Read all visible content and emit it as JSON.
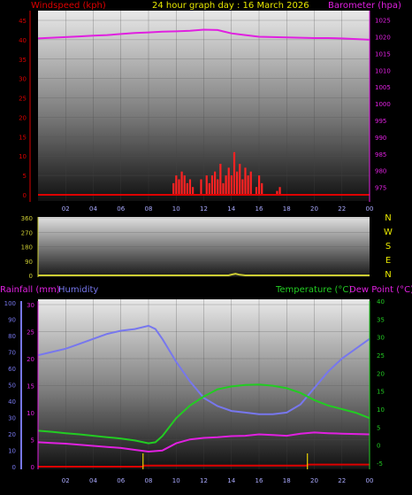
{
  "header": {
    "title": "24 hour graph day : 16 March 2026",
    "left_label": "Windspeed (kph)",
    "right_label": "Barometer (hpa)"
  },
  "colors": {
    "windspeed": "#dd0000",
    "windgust": "#ff2222",
    "barometer": "#e020e0",
    "direction": "#cccc33",
    "humidity": "#7777ee",
    "temperature": "#22cc22",
    "dewpoint": "#e020e0",
    "rain": "#e8d000",
    "title": "#e8e800",
    "frame": "#9999ff"
  },
  "direction_letters": [
    "N",
    "W",
    "S",
    "E",
    "N"
  ],
  "chart_data": [
    {
      "type": "line",
      "title": "24 hour graph day : 16 March 2026",
      "xlabel": "",
      "x_ticks": [
        "02",
        "04",
        "06",
        "08",
        "10",
        "12",
        "14",
        "16",
        "18",
        "20",
        "22",
        "00"
      ],
      "y_left_label": "Windspeed (kph)",
      "y_left_ticks": [
        "0",
        "5",
        "10",
        "15",
        "20",
        "25",
        "30",
        "35",
        "40",
        "45"
      ],
      "ylim_left": [
        0,
        45
      ],
      "y_right_label": "Barometer (hpa)",
      "y_right_ticks": [
        "975",
        "980",
        "985",
        "990",
        "995",
        "1000",
        "1005",
        "1010",
        "1015",
        "1020",
        "1025"
      ],
      "ylim_right": [
        972,
        1027
      ],
      "series": [
        {
          "name": "Barometer (hpa)",
          "axis": "right",
          "x": [
            0,
            1,
            2,
            3,
            4,
            5,
            6,
            7,
            8,
            9,
            10,
            11,
            12,
            13,
            14,
            15,
            16,
            17,
            18,
            19,
            20,
            21,
            22,
            23,
            24
          ],
          "values": [
            1019.5,
            1019.7,
            1019.9,
            1020.1,
            1020.3,
            1020.5,
            1020.8,
            1021.1,
            1021.3,
            1021.5,
            1021.6,
            1021.8,
            1022.1,
            1022.0,
            1021.0,
            1020.5,
            1020.0,
            1019.9,
            1019.8,
            1019.7,
            1019.6,
            1019.6,
            1019.5,
            1019.3,
            1019.1
          ]
        },
        {
          "name": "Windspeed (kph)",
          "axis": "left",
          "type": "bar",
          "x": [
            9.8,
            10.0,
            10.2,
            10.4,
            10.6,
            10.8,
            11.0,
            11.2,
            11.8,
            12.2,
            12.4,
            12.6,
            12.8,
            13.0,
            13.2,
            13.4,
            13.6,
            13.8,
            14.0,
            14.2,
            14.4,
            14.6,
            14.8,
            15.0,
            15.2,
            15.4,
            15.8,
            16.0,
            16.2,
            17.3,
            17.5
          ],
          "values": [
            3,
            5,
            4,
            6,
            5,
            3,
            4,
            2,
            4,
            5,
            3,
            5,
            6,
            4,
            8,
            3,
            5,
            7,
            5,
            11,
            6,
            8,
            4,
            7,
            5,
            6,
            2,
            5,
            3,
            1,
            2
          ]
        }
      ]
    },
    {
      "type": "line",
      "title": "",
      "y_left_ticks": [
        "0",
        "90",
        "180",
        "270",
        "360"
      ],
      "ylim_left": [
        0,
        360
      ],
      "x_ticks": [],
      "series": [
        {
          "name": "Wind Direction",
          "x": [
            0,
            4,
            8,
            12,
            13.8,
            14.0,
            14.3,
            14.6,
            15,
            18,
            22,
            24
          ],
          "values": [
            0,
            0,
            0,
            0,
            0,
            5,
            10,
            4,
            0,
            0,
            0,
            0
          ]
        }
      ]
    },
    {
      "type": "line",
      "title": "",
      "x_ticks": [
        "02",
        "04",
        "06",
        "08",
        "10",
        "12",
        "14",
        "16",
        "18",
        "20",
        "22",
        "00"
      ],
      "y_left_label": "Rainfall (mm)",
      "y_left2_label": "Humidity",
      "y_left_ticks": [
        "0",
        "5",
        "10",
        "15",
        "20",
        "25",
        "30"
      ],
      "ylim_left": [
        0,
        30
      ],
      "y_humidity_ticks": [
        "0",
        "10",
        "20",
        "30",
        "40",
        "50",
        "60",
        "70",
        "80",
        "90",
        "100"
      ],
      "ylim_humidity": [
        0,
        100
      ],
      "y_right_label": "Temperature (°C)",
      "y_right2_label": "Dew Point (°C)",
      "y_right_ticks": [
        "-5",
        "0",
        "5",
        "10",
        "15",
        "20",
        "25",
        "30",
        "35",
        "40"
      ],
      "ylim_right": [
        -5,
        40
      ],
      "series": [
        {
          "name": "Humidity",
          "axis": "humidity",
          "x": [
            0,
            1,
            2,
            3,
            4,
            5,
            6,
            7,
            8,
            8.5,
            9,
            10,
            11,
            12,
            13,
            14,
            15,
            16,
            17,
            18,
            19,
            20,
            21,
            22,
            23,
            24
          ],
          "values": [
            68,
            70,
            72,
            75,
            78,
            81,
            83,
            84,
            86,
            84,
            78,
            64,
            52,
            42,
            37,
            34,
            33,
            32,
            32,
            33,
            38,
            48,
            58,
            66,
            72,
            78
          ]
        },
        {
          "name": "Temperature (°C)",
          "axis": "right",
          "x": [
            0,
            1,
            2,
            3,
            4,
            5,
            6,
            7,
            8,
            8.5,
            9,
            10,
            11,
            12,
            13,
            14,
            15,
            16,
            17,
            18,
            19,
            20,
            21,
            22,
            23,
            24
          ],
          "values": [
            4.0,
            3.7,
            3.3,
            3.0,
            2.6,
            2.2,
            1.8,
            1.3,
            0.5,
            0.8,
            2.5,
            7.5,
            11.0,
            13.5,
            15.5,
            16.3,
            16.7,
            16.8,
            16.5,
            15.8,
            14.5,
            12.5,
            11.0,
            10.0,
            9.0,
            7.5
          ]
        },
        {
          "name": "Dew Point (°C)",
          "axis": "right",
          "x": [
            0,
            1,
            2,
            3,
            4,
            5,
            6,
            7,
            8,
            9,
            10,
            11,
            12,
            13,
            14,
            15,
            16,
            17,
            18,
            19,
            20,
            21,
            22,
            23,
            24
          ],
          "values": [
            0.8,
            0.6,
            0.4,
            0.1,
            -0.2,
            -0.5,
            -0.8,
            -1.3,
            -1.8,
            -1.5,
            0.5,
            1.6,
            2.0,
            2.2,
            2.5,
            2.6,
            3.0,
            2.8,
            2.6,
            3.2,
            3.5,
            3.3,
            3.2,
            3.1,
            3.0
          ]
        },
        {
          "name": "Rainfall (mm)",
          "axis": "left",
          "x": [
            0,
            7.6,
            7.61,
            19.5,
            19.51,
            24
          ],
          "values": [
            0,
            0,
            0.2,
            0.2,
            0.4,
            0.4
          ]
        }
      ],
      "rain_markers_x": [
        7.6,
        19.5
      ]
    }
  ]
}
